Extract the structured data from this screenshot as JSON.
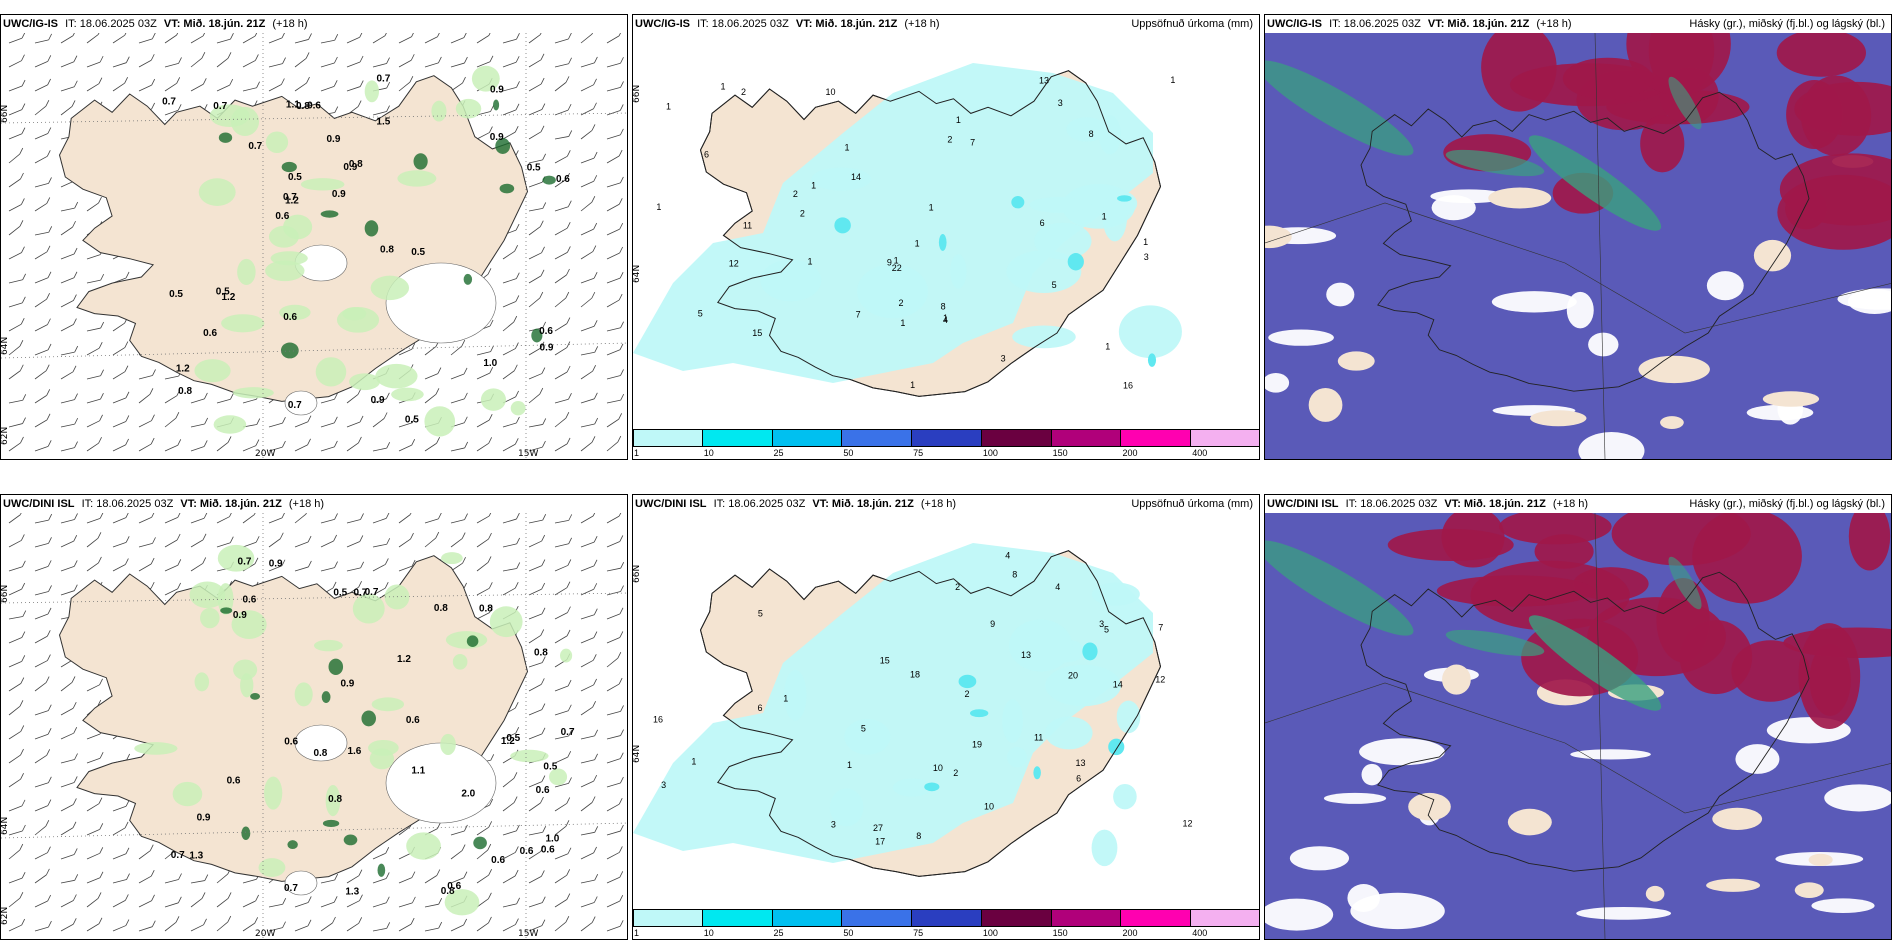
{
  "panels": {
    "top": {
      "model": "UWC/IG-IS",
      "it": "IT: 18.06.2025 03Z",
      "vt": "VT: Mið. 18.jún. 21Z",
      "lead": "(+18 h)",
      "precip_title": "Uppsöfnuð úrkoma (mm)",
      "cloud_title": "Hásky (gr.), miðský (fj.bl.) og lágský (bl.)",
      "lat_labels": [
        "66N",
        "64N",
        "62N"
      ],
      "lon_labels": [
        "20W",
        "15W"
      ],
      "wind_values": [
        "1.2",
        "0.6",
        "0.9",
        "1.2",
        "0.9",
        "0.6",
        "0.7",
        "0.9",
        "0.8",
        "1.0",
        "0.6",
        "0.9",
        "0.6",
        "1.5",
        "1.2",
        "1.1",
        "0.9",
        "0.5",
        "0.7",
        "0.9",
        "0.6",
        "0.8",
        "0.8",
        "0.5",
        "0.7",
        "0.7",
        "0.5",
        "0.8",
        "0.9",
        "0.7",
        "0.6",
        "0.5",
        "0.7",
        "0.5",
        "0.5"
      ],
      "precip_values": [
        "1",
        "1",
        "1",
        "1",
        "1",
        "1",
        "1",
        "1",
        "1",
        "2",
        "2",
        "2",
        "1",
        "1",
        "1",
        "2",
        "3",
        "1",
        "1",
        "1",
        "1",
        "1",
        "2",
        "3",
        "4",
        "5",
        "6",
        "7",
        "8",
        "9",
        "10",
        "11",
        "12",
        "13",
        "14",
        "15",
        "16",
        "22",
        "3",
        "6",
        "5",
        "7",
        "8"
      ]
    },
    "bottom": {
      "model": "UWC/DINI ISL",
      "it": "IT: 18.06.2025 03Z",
      "vt": "VT: Mið. 18.jún. 21Z",
      "lead": "(+18 h)",
      "precip_title": "Uppsöfnuð úrkoma (mm)",
      "cloud_title": "Hásky (gr.), miðský (fj.bl.) og lágský (bl.)",
      "lat_labels": [
        "66N",
        "64N",
        "62N"
      ],
      "lon_labels": [
        "20W",
        "15W"
      ],
      "wind_values": [
        "0.6",
        "2.0",
        "1.1",
        "0.6",
        "0.9",
        "1.2",
        "0.8",
        "0.8",
        "0.7",
        "0.8",
        "1.3",
        "0.6",
        "0.6",
        "0.8",
        "1.6",
        "0.9",
        "0.8",
        "0.5",
        "0.5",
        "0.7",
        "0.6",
        "0.6",
        "1.2",
        "0.7",
        "0.7",
        "0.5",
        "0.9",
        "0.6",
        "1.3",
        "0.6",
        "0.7",
        "0.6",
        "0.9",
        "0.8",
        "1.0",
        "0.7"
      ],
      "precip_values": [
        "1",
        "2",
        "3",
        "4",
        "5",
        "6",
        "7",
        "8",
        "9",
        "10",
        "11",
        "12",
        "13",
        "14",
        "15",
        "16",
        "17",
        "18",
        "19",
        "20",
        "27",
        "3",
        "5",
        "2",
        "3",
        "1",
        "1",
        "2",
        "4",
        "5",
        "6",
        "8",
        "10",
        "12",
        "13"
      ]
    }
  },
  "colorbar": {
    "labels": [
      "1",
      "10",
      "25",
      "50",
      "75",
      "100",
      "150",
      "200",
      "400"
    ],
    "colors": [
      "#bff8f8",
      "#00e8f0",
      "#00c0f0",
      "#3a72e8",
      "#2a3ec0",
      "#6a0040",
      "#b0007a",
      "#ff00b0",
      "#f4b0f0"
    ]
  },
  "colors": {
    "land": "#f4e4d2",
    "precip_light": "#bff8f8",
    "precip_mid": "#60e8f0",
    "wind_green_light": "#c9f0b9",
    "wind_green_dark": "#1b6b2e",
    "cloud_low": "#5a5ab8",
    "cloud_mid": "#a0184a",
    "cloud_high": "#3aa080"
  }
}
